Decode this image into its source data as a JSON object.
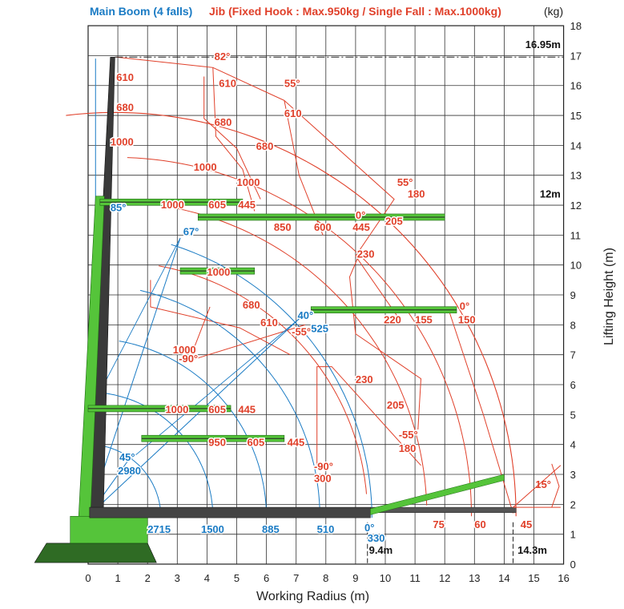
{
  "header": {
    "main_boom": "Main Boom (4 falls)",
    "jib": "Jib (Fixed Hook : Max.950kg / Single Fall : Max.1000kg)",
    "unit": "(kg)"
  },
  "axes": {
    "x_title": "Working Radius (m)",
    "y_title": "Lifting Height (m)",
    "x_ticks": [
      "0",
      "1",
      "2",
      "3",
      "4",
      "5",
      "6",
      "7",
      "8",
      "9",
      "10",
      "11",
      "12",
      "13",
      "14",
      "15",
      "16"
    ],
    "y_ticks": [
      "0",
      "1",
      "2",
      "3",
      "4",
      "5",
      "6",
      "7",
      "8",
      "9",
      "10",
      "11",
      "12",
      "13",
      "14",
      "15",
      "16",
      "17",
      "18"
    ]
  },
  "colors": {
    "main_boom": "#1a7bc4",
    "jib": "#e0402a",
    "crane_body": "#55c43a",
    "crane_dark": "#3a3a3a",
    "grid": "#333333"
  },
  "dimension_labels": {
    "max_height": "16.95m",
    "height_12": "12m",
    "radius_9_4": "9.4m",
    "radius_14_3": "14.3m",
    "angle_15": "15°"
  },
  "main_boom_labels": [
    {
      "t": "85°",
      "x": 0.75,
      "y": 11.8
    },
    {
      "t": "67°",
      "x": 3.2,
      "y": 11.0
    },
    {
      "t": "45°",
      "x": 1.05,
      "y": 3.45
    },
    {
      "t": "2980",
      "x": 1.0,
      "y": 3.0
    },
    {
      "t": "40°",
      "x": 7.05,
      "y": 8.2
    },
    {
      "t": "525",
      "x": 7.5,
      "y": 7.75
    },
    {
      "t": "0°",
      "x": 9.3,
      "y": 1.1
    },
    {
      "t": "330",
      "x": 9.4,
      "y": 0.75
    },
    {
      "t": "2715",
      "x": 2.0,
      "y": 1.05
    },
    {
      "t": "1500",
      "x": 3.8,
      "y": 1.05
    },
    {
      "t": "885",
      "x": 5.85,
      "y": 1.05
    },
    {
      "t": "510",
      "x": 7.7,
      "y": 1.05
    }
  ],
  "jib_labels": [
    {
      "t": "610",
      "x": 0.95,
      "y": 16.15
    },
    {
      "t": "680",
      "x": 0.95,
      "y": 15.15
    },
    {
      "t": "1000",
      "x": 0.75,
      "y": 14.0
    },
    {
      "t": "82°",
      "x": 4.25,
      "y": 16.85
    },
    {
      "t": "610",
      "x": 4.4,
      "y": 15.95
    },
    {
      "t": "55°",
      "x": 6.6,
      "y": 15.95
    },
    {
      "t": "610",
      "x": 6.6,
      "y": 14.95
    },
    {
      "t": "680",
      "x": 4.25,
      "y": 14.65
    },
    {
      "t": "680",
      "x": 5.65,
      "y": 13.85
    },
    {
      "t": "1000",
      "x": 3.55,
      "y": 13.15
    },
    {
      "t": "1000",
      "x": 5.0,
      "y": 12.65
    },
    {
      "t": "1000",
      "x": 2.45,
      "y": 11.9
    },
    {
      "t": "605",
      "x": 4.05,
      "y": 11.9
    },
    {
      "t": "445",
      "x": 5.05,
      "y": 11.9
    },
    {
      "t": "850",
      "x": 6.25,
      "y": 11.15
    },
    {
      "t": "600",
      "x": 7.6,
      "y": 11.15
    },
    {
      "t": "445",
      "x": 8.9,
      "y": 11.15
    },
    {
      "t": "0°",
      "x": 9.0,
      "y": 11.55
    },
    {
      "t": "55°",
      "x": 10.4,
      "y": 12.65
    },
    {
      "t": "180",
      "x": 10.75,
      "y": 12.25
    },
    {
      "t": "205",
      "x": 10.0,
      "y": 11.35
    },
    {
      "t": "230",
      "x": 9.05,
      "y": 10.25
    },
    {
      "t": "1000",
      "x": 4.0,
      "y": 9.65
    },
    {
      "t": "680",
      "x": 5.2,
      "y": 8.55
    },
    {
      "t": "610",
      "x": 5.8,
      "y": 7.95
    },
    {
      "t": "-55°",
      "x": 6.85,
      "y": 7.65
    },
    {
      "t": "1000",
      "x": 2.85,
      "y": 7.05
    },
    {
      "t": "-90°",
      "x": 3.05,
      "y": 6.75
    },
    {
      "t": "220",
      "x": 9.95,
      "y": 8.05
    },
    {
      "t": "155",
      "x": 11.0,
      "y": 8.05
    },
    {
      "t": "150",
      "x": 12.45,
      "y": 8.05
    },
    {
      "t": "0°",
      "x": 12.5,
      "y": 8.5
    },
    {
      "t": "230",
      "x": 9.0,
      "y": 6.05
    },
    {
      "t": "205",
      "x": 10.05,
      "y": 5.2
    },
    {
      "t": "-55°",
      "x": 10.45,
      "y": 4.2
    },
    {
      "t": "180",
      "x": 10.45,
      "y": 3.75
    },
    {
      "t": "-90°",
      "x": 7.6,
      "y": 3.15
    },
    {
      "t": "300",
      "x": 7.6,
      "y": 2.75
    },
    {
      "t": "1000",
      "x": 2.6,
      "y": 5.05
    },
    {
      "t": "605",
      "x": 4.05,
      "y": 5.05
    },
    {
      "t": "445",
      "x": 5.05,
      "y": 5.05
    },
    {
      "t": "950",
      "x": 4.05,
      "y": 3.95
    },
    {
      "t": "605",
      "x": 5.35,
      "y": 3.95
    },
    {
      "t": "445",
      "x": 6.7,
      "y": 3.95
    },
    {
      "t": "75",
      "x": 11.6,
      "y": 1.2
    },
    {
      "t": "60",
      "x": 13.0,
      "y": 1.2
    },
    {
      "t": "45",
      "x": 14.55,
      "y": 1.2
    }
  ]
}
